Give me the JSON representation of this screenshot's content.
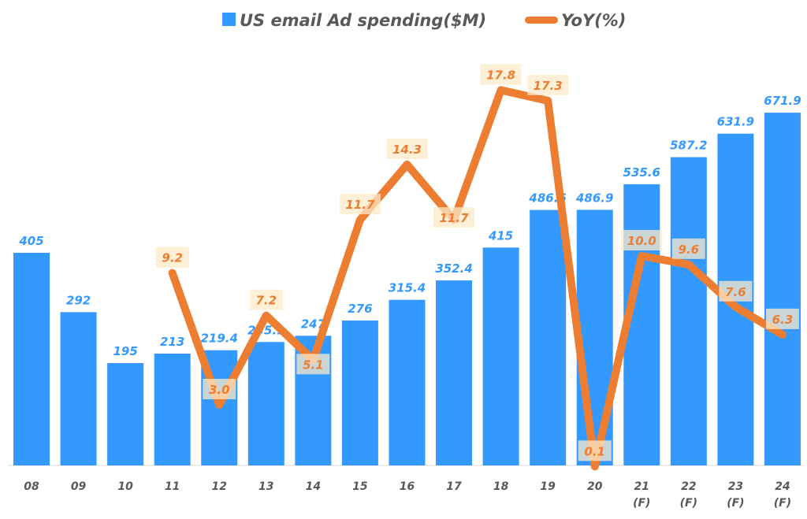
{
  "chart_data": {
    "type": "bar+line",
    "categories": [
      "08",
      "09",
      "10",
      "11",
      "12",
      "13",
      "14",
      "15",
      "16",
      "17",
      "18",
      "19",
      "20",
      "21\n(F)",
      "22\n(F)",
      "23\n(F)",
      "24\n(F)"
    ],
    "series": [
      {
        "name": "US email Ad spending($M)",
        "type": "bar",
        "color": "#3399ff",
        "values": [
          405,
          292,
          195,
          213,
          219.4,
          235.1,
          247,
          276,
          315.4,
          352.4,
          415,
          486.6,
          486.9,
          535.6,
          587.2,
          631.9,
          671.9
        ],
        "labels": [
          "405",
          "292",
          "195",
          "213",
          "219.4",
          "235.1",
          "247",
          "276",
          "315.4",
          "352.4",
          "415",
          "486.6",
          "486.9",
          "535.6",
          "587.2",
          "631.9",
          "671.9"
        ]
      },
      {
        "name": "YoY(%)",
        "type": "line",
        "color": "#ed7d31",
        "values": [
          null,
          null,
          null,
          9.2,
          3.0,
          7.2,
          5.1,
          11.7,
          14.3,
          11.7,
          17.8,
          17.3,
          0.1,
          10.0,
          9.6,
          7.6,
          6.3
        ],
        "labels": [
          "",
          "",
          "",
          "9.2",
          "3.0",
          "7.2",
          "5.1",
          "11.7",
          "14.3",
          "11.7",
          "17.8",
          "17.3",
          "0.1",
          "10.0",
          "9.6",
          "7.6",
          "6.3"
        ]
      }
    ],
    "legend": "top-center",
    "grid": false,
    "y_axis_visible": false
  }
}
